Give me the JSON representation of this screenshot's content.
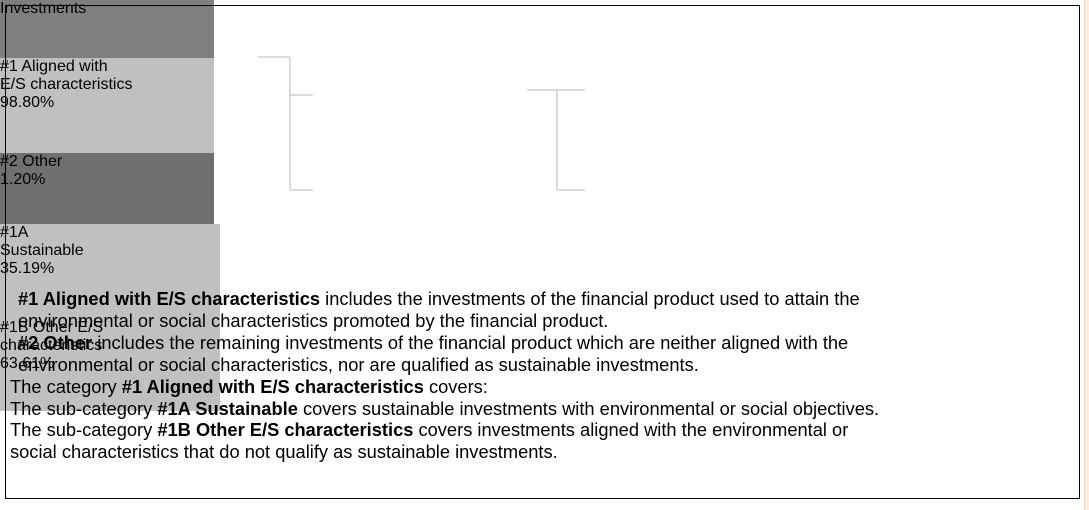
{
  "nodes": [
    {
      "label": [
        "Investments"
      ]
    },
    {
      "label": [
        "#1 Aligned with",
        "E/S characteristics",
        "98.80%"
      ]
    },
    {
      "label": [
        "#2 Other",
        "1.20%"
      ]
    },
    {
      "label": [
        "#1A",
        "Sustainable",
        "35.19%"
      ]
    },
    {
      "label": [
        "#1B Other E/S",
        "characteristics",
        "63.61%"
      ]
    }
  ],
  "text": {
    "lines": [
      [
        {
          "text": "#1 Aligned with E/S characteristics",
          "bold": true
        },
        {
          "text": " includes the investments of the financial product used to attain the",
          "bold": false
        }
      ],
      [
        {
          "text": "environmental or social characteristics promoted by the financial product.",
          "bold": false
        }
      ],
      [
        {
          "text": "#2 Other",
          "bold": true
        },
        {
          "text": " includes the remaining investments of the financial product which are neither aligned with the",
          "bold": false
        }
      ],
      [
        {
          "text": "environmental or social characteristics, nor are qualified as sustainable investments.",
          "bold": false
        }
      ],
      [
        {
          "text": "The category ",
          "bold": false
        },
        {
          "text": "#1 Aligned with E/S characteristics",
          "bold": true
        },
        {
          "text": " covers:",
          "bold": false
        }
      ],
      [
        {
          "text": "The sub-category ",
          "bold": false
        },
        {
          "text": "#1A Sustainable",
          "bold": true
        },
        {
          "text": " covers sustainable investments with environmental or social objectives.",
          "bold": false
        }
      ],
      [
        {
          "text": "The sub-category ",
          "bold": false
        },
        {
          "text": "#1B Other E/S characteristics",
          "bold": true
        },
        {
          "text": " covers investments aligned with the environmental or",
          "bold": false
        }
      ],
      [
        {
          "text": "social characteristics that do not qualify as sustainable investments.",
          "bold": false
        }
      ]
    ]
  }
}
